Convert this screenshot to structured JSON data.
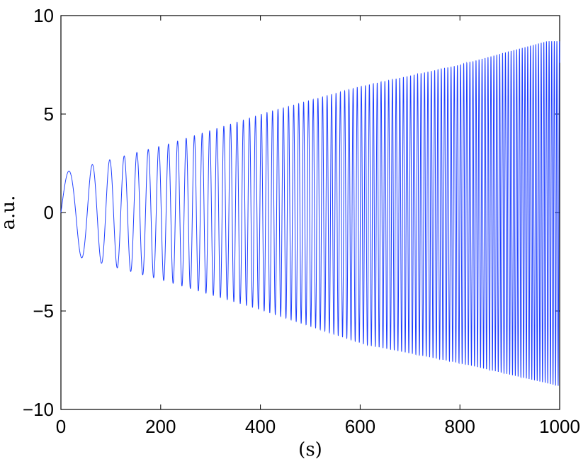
{
  "chart_data": {
    "type": "line",
    "title": "",
    "xlabel": "(s)",
    "ylabel": "a.u.",
    "xlim": [
      0,
      1000
    ],
    "ylim": [
      -10,
      10
    ],
    "xticks": [
      0,
      200,
      400,
      600,
      800,
      1000
    ],
    "xtick_labels": [
      "0",
      "200",
      "400",
      "600",
      "800",
      "1000"
    ],
    "yticks": [
      -10,
      -5,
      0,
      5,
      10
    ],
    "ytick_labels": [
      "−10",
      "−5",
      "0",
      "5",
      "10"
    ],
    "grid": false,
    "series": [
      {
        "color": "#1f3fff",
        "peaks": [
          {
            "x": 16,
            "y": 2.1
          },
          {
            "x": 72,
            "y": 2.5
          },
          {
            "x": 218,
            "y": 3.5
          },
          {
            "x": 416,
            "y": 5.1
          },
          {
            "x": 601,
            "y": 6.4
          },
          {
            "x": 800,
            "y": 7.5
          },
          {
            "x": 975,
            "y": 8.7
          }
        ],
        "troughs": [
          {
            "x": 47,
            "y": -2.3
          },
          {
            "x": 97,
            "y": -2.7
          },
          {
            "x": 199,
            "y": -3.4
          },
          {
            "x": 396,
            "y": -4.9
          },
          {
            "x": 610,
            "y": -6.7
          },
          {
            "x": 810,
            "y": -7.7
          },
          {
            "x": 997,
            "y": -8.8
          }
        ],
        "start": {
          "x": 0,
          "y": 0
        },
        "end": {
          "x": 1000,
          "y": -8.8
        }
      }
    ]
  }
}
